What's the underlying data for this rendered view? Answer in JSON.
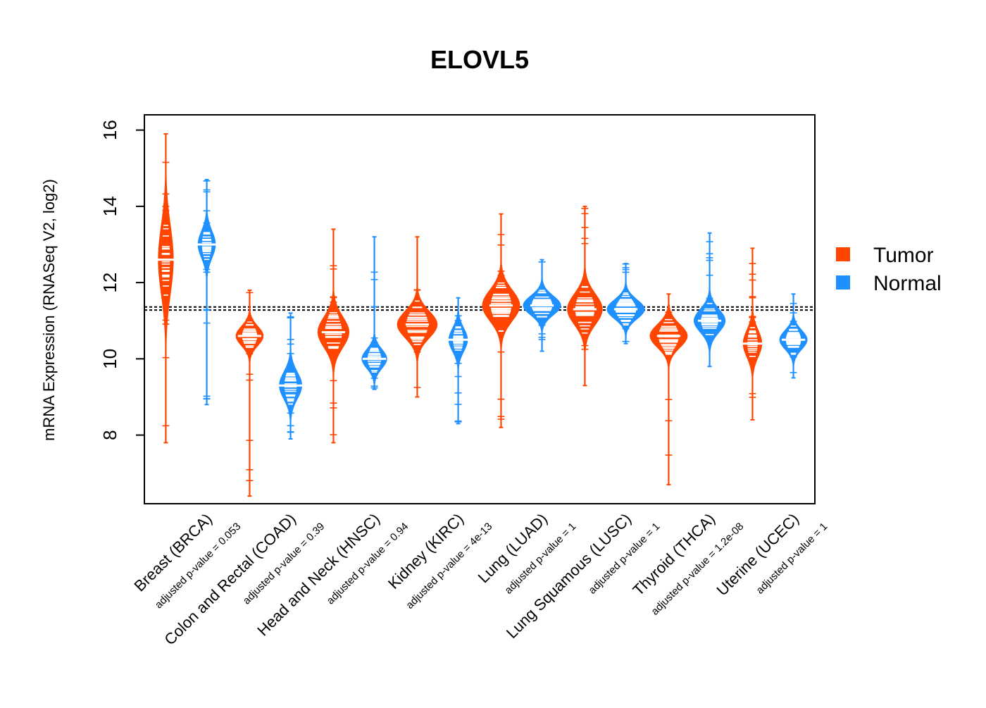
{
  "chart_data": {
    "type": "beanplot",
    "title": "ELOVL5",
    "xlabel": "",
    "ylabel": "mRNA Expression (RNASeq V2, log2)",
    "ylim": [
      6.2,
      16.4
    ],
    "yticks": [
      8,
      10,
      12,
      14,
      16
    ],
    "reference_lines": [
      11.28,
      11.36
    ],
    "legend": {
      "position": "right",
      "entries": [
        {
          "name": "Tumor",
          "color": "#FF4500"
        },
        {
          "name": "Normal",
          "color": "#1E90FF"
        }
      ]
    },
    "categories": [
      {
        "label": "Breast (BRCA)",
        "pvalue_text": "adjusted p-value = 0.053",
        "tumor": {
          "median": 12.6,
          "min": 7.8,
          "max": 15.9,
          "spread": 0.9,
          "width": 0.12
        },
        "normal": {
          "median": 13.0,
          "min": 8.8,
          "max": 14.7,
          "spread": 0.35,
          "width": 0.14
        }
      },
      {
        "label": "Colon and Rectal (COAD)",
        "pvalue_text": "adjusted p-value = 0.39",
        "tumor": {
          "median": 10.6,
          "min": 6.4,
          "max": 11.8,
          "spread": 0.25,
          "width": 0.22
        },
        "normal": {
          "median": 9.3,
          "min": 7.9,
          "max": 11.2,
          "spread": 0.35,
          "width": 0.18
        }
      },
      {
        "label": "Head and Neck (HNSC)",
        "pvalue_text": "adjusted p-value = 0.94",
        "tumor": {
          "median": 10.7,
          "min": 7.8,
          "max": 13.4,
          "spread": 0.4,
          "width": 0.25
        },
        "normal": {
          "median": 10.0,
          "min": 9.2,
          "max": 13.2,
          "spread": 0.25,
          "width": 0.2
        }
      },
      {
        "label": "Kidney (KIRC)",
        "pvalue_text": "adjusted p-value = 4e-13",
        "tumor": {
          "median": 10.9,
          "min": 9.0,
          "max": 13.2,
          "spread": 0.35,
          "width": 0.32
        },
        "normal": {
          "median": 10.5,
          "min": 8.3,
          "max": 11.6,
          "spread": 0.3,
          "width": 0.15
        }
      },
      {
        "label": "Lung (LUAD)",
        "pvalue_text": "adjusted p-value = 1",
        "tumor": {
          "median": 11.4,
          "min": 8.2,
          "max": 13.8,
          "spread": 0.4,
          "width": 0.3
        },
        "normal": {
          "median": 11.4,
          "min": 10.2,
          "max": 12.6,
          "spread": 0.25,
          "width": 0.3
        }
      },
      {
        "label": "Lung Squamous (LUSC)",
        "pvalue_text": "adjusted p-value = 1",
        "tumor": {
          "median": 11.3,
          "min": 9.3,
          "max": 14.0,
          "spread": 0.4,
          "width": 0.28
        },
        "normal": {
          "median": 11.3,
          "min": 10.4,
          "max": 12.5,
          "spread": 0.25,
          "width": 0.3
        }
      },
      {
        "label": "Thyroid (THCA)",
        "pvalue_text": "adjusted p-value = 1.2e-08",
        "tumor": {
          "median": 10.6,
          "min": 6.7,
          "max": 11.7,
          "spread": 0.3,
          "width": 0.3
        },
        "normal": {
          "median": 11.0,
          "min": 9.8,
          "max": 13.3,
          "spread": 0.3,
          "width": 0.25
        }
      },
      {
        "label": "Uterine (UCEC)",
        "pvalue_text": "adjusted p-value = 1",
        "tumor": {
          "median": 10.4,
          "min": 8.4,
          "max": 12.9,
          "spread": 0.35,
          "width": 0.15
        },
        "normal": {
          "median": 10.5,
          "min": 9.5,
          "max": 11.7,
          "spread": 0.25,
          "width": 0.22
        }
      }
    ]
  }
}
